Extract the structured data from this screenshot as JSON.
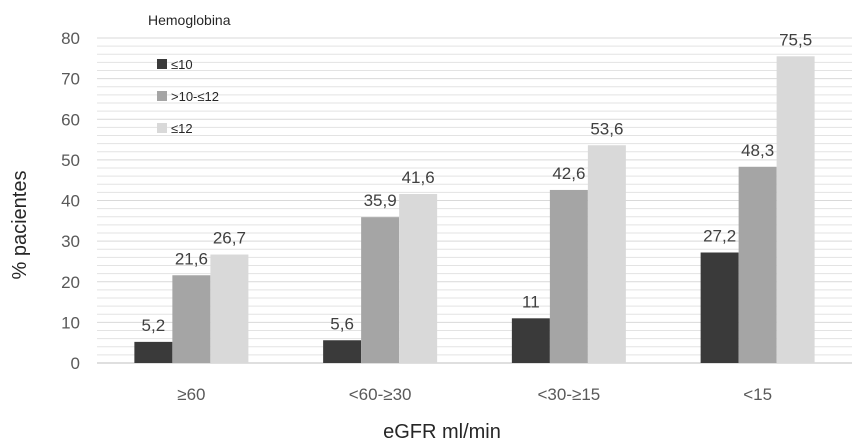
{
  "chart_data": {
    "type": "bar",
    "legend_title": "Hemoglobina",
    "legend_position": "top-left",
    "xlabel": "eGFR ml/min",
    "ylabel": "% pacientes",
    "ylim": [
      0,
      80
    ],
    "yticks": [
      "0",
      "10",
      "20",
      "30",
      "40",
      "50",
      "60",
      "70",
      "80"
    ],
    "grid": true,
    "categories": [
      "≥60",
      "<60-≥30",
      "<30-≥15",
      "<15"
    ],
    "series": [
      {
        "name": "≤10",
        "color": "#3a3a3a",
        "values": [
          5.2,
          5.6,
          11,
          27.2
        ],
        "labels": [
          "5,2",
          "5,6",
          "11",
          "27,2"
        ]
      },
      {
        "name": ">10-≤12",
        "color": "#a5a5a5",
        "values": [
          21.6,
          35.9,
          42.6,
          48.3
        ],
        "labels": [
          "21,6",
          "35,9",
          "42,6",
          "48,3"
        ]
      },
      {
        "name": "≤12",
        "color": "#d9d9d9",
        "values": [
          26.7,
          41.6,
          53.6,
          75.5
        ],
        "labels": [
          "26,7",
          "41,6",
          "53,6",
          "75,5"
        ]
      }
    ]
  }
}
